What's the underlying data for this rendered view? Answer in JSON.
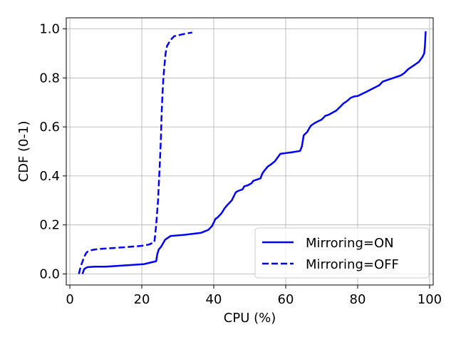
{
  "chart_data": {
    "type": "line",
    "title": "",
    "xlabel": "CPU (%)",
    "ylabel": "CDF (0-1)",
    "xlim": [
      -1,
      101
    ],
    "ylim": [
      -0.045,
      1.045
    ],
    "xticks": [
      0,
      20,
      40,
      60,
      80,
      100
    ],
    "xtick_labels": [
      "0",
      "20",
      "40",
      "60",
      "80",
      "100"
    ],
    "yticks": [
      0.0,
      0.2,
      0.4,
      0.6,
      0.8,
      1.0
    ],
    "ytick_labels": [
      "0.0",
      "0.2",
      "0.4",
      "0.6",
      "0.8",
      "1.0"
    ],
    "grid": true,
    "legend_position": "lower-right",
    "colors": {
      "series": "#0000ff",
      "grid": "#b0b0b0",
      "frame": "#000000"
    },
    "series": [
      {
        "name": "Mirroring=ON",
        "style": "solid",
        "x": [
          3.5,
          4.0,
          4.5,
          5.0,
          7.0,
          10.0,
          20.5,
          22.0,
          24.0,
          24.3,
          24.7,
          25.3,
          26.5,
          28.0,
          32.0,
          36.5,
          38.5,
          39.5,
          40.0,
          40.5,
          41.0,
          42.0,
          42.5,
          43.0,
          44.0,
          45.0,
          46.0,
          46.3,
          47.0,
          48.0,
          48.5,
          49.5,
          50.5,
          51.0,
          52.0,
          53.0,
          53.5,
          54.0,
          55.0,
          56.0,
          57.0,
          58.0,
          58.5,
          60.0,
          62.0,
          64.0,
          64.5,
          65.0,
          65.3,
          66.0,
          66.5,
          67.0,
          68.0,
          69.0,
          70.0,
          71.0,
          72.0,
          73.0,
          74.0,
          75.0,
          76.0,
          77.0,
          78.0,
          79.0,
          80.0,
          82.0,
          84.0,
          86.0,
          87.0,
          88.0,
          89.0,
          90.0,
          91.0,
          92.0,
          93.0,
          94.0,
          95.0,
          96.0,
          97.0,
          97.5,
          98.0,
          98.5,
          98.7,
          98.8,
          98.9
        ],
        "y": [
          0.0,
          0.02,
          0.025,
          0.028,
          0.03,
          0.03,
          0.04,
          0.045,
          0.052,
          0.08,
          0.1,
          0.11,
          0.14,
          0.155,
          0.16,
          0.168,
          0.18,
          0.195,
          0.21,
          0.225,
          0.23,
          0.245,
          0.255,
          0.268,
          0.285,
          0.3,
          0.33,
          0.335,
          0.34,
          0.345,
          0.358,
          0.362,
          0.37,
          0.38,
          0.385,
          0.39,
          0.41,
          0.42,
          0.438,
          0.448,
          0.46,
          0.48,
          0.49,
          0.493,
          0.497,
          0.502,
          0.52,
          0.565,
          0.57,
          0.58,
          0.593,
          0.605,
          0.615,
          0.623,
          0.63,
          0.645,
          0.65,
          0.658,
          0.666,
          0.68,
          0.695,
          0.705,
          0.718,
          0.724,
          0.726,
          0.74,
          0.755,
          0.77,
          0.785,
          0.79,
          0.795,
          0.8,
          0.805,
          0.81,
          0.82,
          0.835,
          0.845,
          0.855,
          0.865,
          0.875,
          0.885,
          0.9,
          0.93,
          0.96,
          0.99
        ]
      },
      {
        "name": "Mirroring=OFF",
        "style": "dashed",
        "x": [
          2.5,
          3.0,
          3.5,
          4.0,
          4.5,
          5.0,
          6.0,
          7.0,
          9.0,
          12.0,
          16.0,
          20.0,
          22.0,
          23.5,
          24.0,
          24.5,
          25.0,
          25.3,
          25.5,
          25.7,
          26.0,
          26.3,
          26.6,
          27.0,
          28.0,
          29.0,
          30.5,
          32.0,
          34.0
        ],
        "y": [
          0.0,
          0.03,
          0.05,
          0.07,
          0.085,
          0.092,
          0.097,
          0.1,
          0.103,
          0.106,
          0.11,
          0.115,
          0.12,
          0.13,
          0.2,
          0.3,
          0.45,
          0.55,
          0.65,
          0.72,
          0.8,
          0.85,
          0.9,
          0.93,
          0.955,
          0.97,
          0.975,
          0.98,
          0.985
        ]
      }
    ]
  }
}
